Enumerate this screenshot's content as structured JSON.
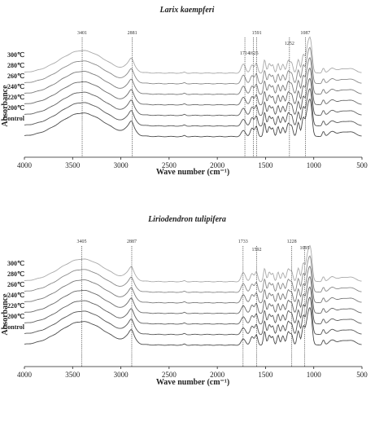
{
  "chart_data": [
    {
      "type": "line",
      "title": "Larix kaempferi",
      "xlabel": "Wave number (cm⁻¹)",
      "ylabel": "Absorbance",
      "xlim": [
        4000,
        500
      ],
      "xticks": [
        4000,
        3500,
        3000,
        2500,
        2000,
        1500,
        1000,
        500
      ],
      "grid": false,
      "series": [
        {
          "name": "300℃",
          "color": "#aaaaaa"
        },
        {
          "name": "280℃",
          "color": "#8a8a8a"
        },
        {
          "name": "260℃",
          "color": "#7a7a7a"
        },
        {
          "name": "240℃",
          "color": "#6a6a6a"
        },
        {
          "name": "220℃",
          "color": "#5e5e5e"
        },
        {
          "name": "200℃",
          "color": "#555555"
        },
        {
          "name": "Control",
          "color": "#4a4a4a"
        }
      ],
      "annotations": [
        {
          "label": "3401",
          "x": 3401
        },
        {
          "label": "2881",
          "x": 2881
        },
        {
          "label": "1714",
          "x": 1714
        },
        {
          "label": "1625",
          "x": 1625
        },
        {
          "label": "1591",
          "x": 1591
        },
        {
          "label": "1252",
          "x": 1252
        },
        {
          "label": "1087",
          "x": 1087
        }
      ]
    },
    {
      "type": "line",
      "title": "Liriodendron tulipifera",
      "xlabel": "Wave number (cm⁻¹)",
      "ylabel": "Absorbance",
      "xlim": [
        4000,
        500
      ],
      "xticks": [
        4000,
        3500,
        3000,
        2500,
        2000,
        1500,
        1000,
        500
      ],
      "grid": false,
      "series": [
        {
          "name": "300℃",
          "color": "#aaaaaa"
        },
        {
          "name": "280℃",
          "color": "#8a8a8a"
        },
        {
          "name": "260℃",
          "color": "#7a7a7a"
        },
        {
          "name": "240℃",
          "color": "#6a6a6a"
        },
        {
          "name": "220℃",
          "color": "#5e5e5e"
        },
        {
          "name": "200℃",
          "color": "#555555"
        },
        {
          "name": "Control",
          "color": "#4a4a4a"
        }
      ],
      "annotations": [
        {
          "label": "3405",
          "x": 3405
        },
        {
          "label": "2887",
          "x": 2887
        },
        {
          "label": "1733",
          "x": 1733
        },
        {
          "label": "1592",
          "x": 1592
        },
        {
          "label": "1228",
          "x": 1228
        },
        {
          "label": "1095",
          "x": 1095
        }
      ]
    }
  ]
}
